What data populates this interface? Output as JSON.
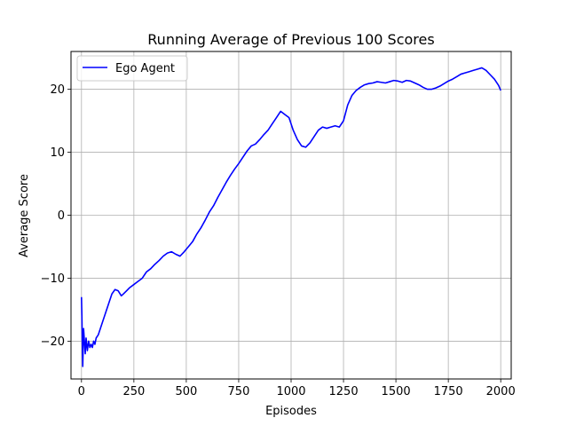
{
  "chart_data": {
    "type": "line",
    "title": "Running Average of Previous 100 Scores",
    "xlabel": "Episodes",
    "ylabel": "Average Score",
    "xlim": [
      -50,
      2050
    ],
    "ylim": [
      -26.0,
      26.0
    ],
    "xticks": [
      0,
      250,
      500,
      750,
      1000,
      1250,
      1500,
      1750,
      2000
    ],
    "yticks": [
      -20,
      -10,
      0,
      10,
      20
    ],
    "xtick_labels": [
      "0",
      "250",
      "500",
      "750",
      "1000",
      "1250",
      "1500",
      "1750",
      "2000"
    ],
    "ytick_labels": [
      "−20",
      "−10",
      "0",
      "10",
      "20"
    ],
    "grid": true,
    "legend": "top-left",
    "series": [
      {
        "name": "Ego Agent",
        "color": "#0000ff",
        "x": [
          0,
          2,
          4,
          6,
          8,
          10,
          14,
          18,
          22,
          28,
          34,
          40,
          46,
          52,
          58,
          64,
          70,
          80,
          90,
          100,
          115,
          130,
          145,
          160,
          175,
          190,
          200,
          215,
          230,
          250,
          270,
          290,
          310,
          330,
          350,
          370,
          390,
          410,
          430,
          450,
          470,
          490,
          510,
          530,
          550,
          570,
          590,
          610,
          630,
          650,
          670,
          690,
          710,
          730,
          750,
          770,
          790,
          810,
          830,
          850,
          870,
          890,
          910,
          930,
          950,
          970,
          990,
          1010,
          1030,
          1050,
          1070,
          1090,
          1110,
          1130,
          1150,
          1170,
          1190,
          1210,
          1230,
          1250,
          1270,
          1290,
          1310,
          1330,
          1350,
          1370,
          1390,
          1410,
          1430,
          1450,
          1470,
          1490,
          1510,
          1530,
          1550,
          1570,
          1590,
          1610,
          1630,
          1650,
          1670,
          1690,
          1710,
          1730,
          1750,
          1770,
          1790,
          1810,
          1830,
          1850,
          1870,
          1890,
          1910,
          1930,
          1950,
          1970,
          1990,
          2000
        ],
        "values": [
          -13.0,
          -16.0,
          -20.5,
          -24.0,
          -21.0,
          -18.0,
          -20.0,
          -22.0,
          -19.5,
          -21.5,
          -20.0,
          -21.0,
          -20.5,
          -21.0,
          -20.0,
          -20.5,
          -19.5,
          -19.0,
          -18.0,
          -17.0,
          -15.5,
          -14.0,
          -12.5,
          -11.8,
          -12.0,
          -12.8,
          -12.5,
          -12.0,
          -11.5,
          -11.0,
          -10.5,
          -10.0,
          -9.0,
          -8.5,
          -7.8,
          -7.2,
          -6.5,
          -6.0,
          -5.8,
          -6.2,
          -6.5,
          -5.8,
          -5.0,
          -4.2,
          -3.0,
          -2.0,
          -0.8,
          0.5,
          1.5,
          2.8,
          4.0,
          5.2,
          6.3,
          7.3,
          8.2,
          9.2,
          10.2,
          11.0,
          11.3,
          12.0,
          12.8,
          13.5,
          14.5,
          15.5,
          16.5,
          16.0,
          15.5,
          13.5,
          12.0,
          11.0,
          10.8,
          11.5,
          12.5,
          13.5,
          14.0,
          13.8,
          14.0,
          14.2,
          14.0,
          15.0,
          17.5,
          19.0,
          19.8,
          20.3,
          20.7,
          20.9,
          21.0,
          21.2,
          21.1,
          21.0,
          21.2,
          21.4,
          21.3,
          21.1,
          21.4,
          21.3,
          21.0,
          20.7,
          20.3,
          20.0,
          20.0,
          20.2,
          20.5,
          20.9,
          21.3,
          21.6,
          22.0,
          22.4,
          22.6,
          22.8,
          23.0,
          23.2,
          23.4,
          23.0,
          22.3,
          21.6,
          20.6,
          19.8
        ]
      }
    ]
  }
}
